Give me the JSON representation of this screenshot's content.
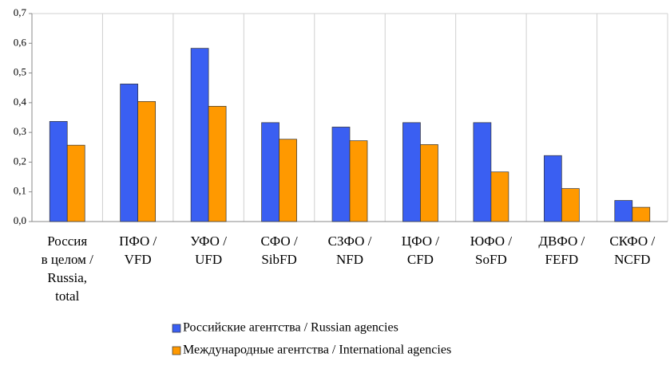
{
  "chart_data": {
    "type": "bar",
    "categories": [
      [
        "Россия",
        "в целом /",
        "Russia,",
        "total"
      ],
      [
        "ПФО /",
        "VFD"
      ],
      [
        "УФО /",
        "UFD"
      ],
      [
        "СФО /",
        "SibFD"
      ],
      [
        "СЗФО /",
        "NFD"
      ],
      [
        "ЦФО /",
        "CFD"
      ],
      [
        "ЮФО /",
        "SoFD"
      ],
      [
        "ДВФО /",
        "FEFD"
      ],
      [
        "СКФО /",
        "NCFD"
      ]
    ],
    "series": [
      {
        "name": "Российские агентства / Russian agencies",
        "color": "#3a5ff2",
        "values": [
          0.337,
          0.463,
          0.583,
          0.333,
          0.318,
          0.333,
          0.333,
          0.222,
          0.071
        ]
      },
      {
        "name": "Международные агентства / International agencies",
        "color": "#ff9900",
        "values": [
          0.257,
          0.404,
          0.388,
          0.277,
          0.272,
          0.259,
          0.167,
          0.111,
          0.048
        ]
      }
    ],
    "ylim": [
      0,
      0.7
    ],
    "yticks": [
      {
        "value": 0,
        "label": "0,0"
      },
      {
        "value": 0.1,
        "label": "0,1"
      },
      {
        "value": 0.2,
        "label": "0,2"
      },
      {
        "value": 0.3,
        "label": "0,3"
      },
      {
        "value": 0.4,
        "label": "0,4"
      },
      {
        "value": 0.5,
        "label": "0,5"
      },
      {
        "value": 0.6,
        "label": "0,6"
      },
      {
        "value": 0.7,
        "label": "0,7"
      }
    ],
    "grid": true
  }
}
